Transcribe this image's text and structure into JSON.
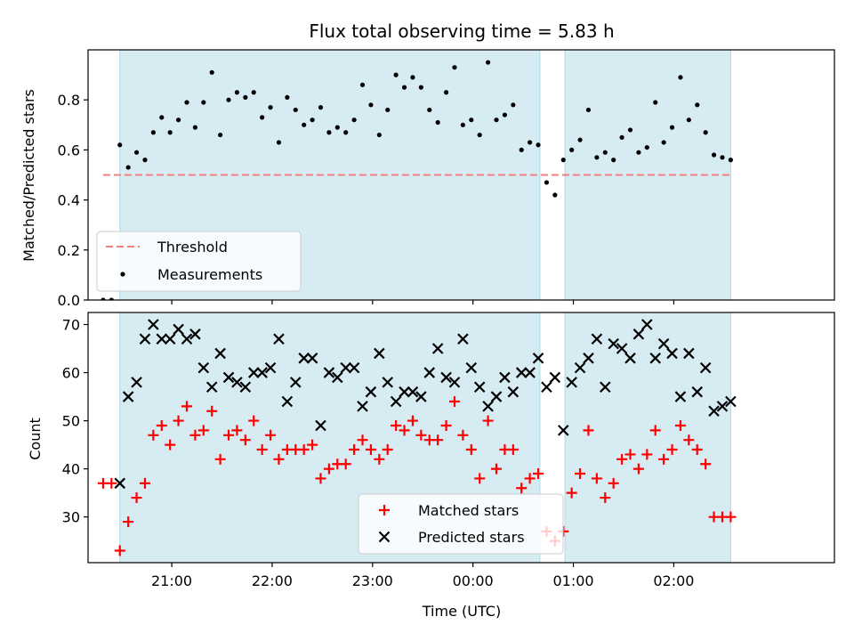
{
  "chart_data": [
    {
      "type": "scatter",
      "title": "Flux total observing time = 5.83 h",
      "ylabel": "Matched/Predicted stars",
      "xlabel": "",
      "xlim": [
        "20:10",
        "03:36"
      ],
      "ylim": [
        0,
        1.0
      ],
      "yticks": [
        "0.0",
        "0.2",
        "0.4",
        "0.6",
        "0.8"
      ],
      "grid": false,
      "legend_position": "lower-left",
      "shaded_intervals": [
        [
          "20:29",
          "00:40"
        ],
        [
          "00:55",
          "02:34"
        ]
      ],
      "threshold": {
        "name": "Threshold",
        "y": 0.5,
        "x_start": "20:19",
        "x_end": "02:34",
        "color": "#f08080"
      },
      "series": [
        {
          "name": "Measurements",
          "color": "#000000",
          "x": [
            "20:19",
            "20:24",
            "20:29",
            "20:34",
            "20:39",
            "20:44",
            "20:49",
            "20:54",
            "20:59",
            "21:04",
            "21:09",
            "21:14",
            "21:19",
            "21:24",
            "21:29",
            "21:34",
            "21:39",
            "21:44",
            "21:49",
            "21:54",
            "21:59",
            "22:04",
            "22:09",
            "22:14",
            "22:19",
            "22:24",
            "22:29",
            "22:34",
            "22:39",
            "22:44",
            "22:49",
            "22:54",
            "22:59",
            "23:04",
            "23:09",
            "23:14",
            "23:19",
            "23:24",
            "23:29",
            "23:34",
            "23:39",
            "23:44",
            "23:49",
            "23:54",
            "23:59",
            "00:04",
            "00:09",
            "00:14",
            "00:19",
            "00:24",
            "00:29",
            "00:34",
            "00:39",
            "00:44",
            "00:49",
            "00:54",
            "00:59",
            "01:04",
            "01:09",
            "01:14",
            "01:19",
            "01:24",
            "01:29",
            "01:34",
            "01:39",
            "01:44",
            "01:49",
            "01:54",
            "01:59",
            "02:04",
            "02:09",
            "02:14",
            "02:19",
            "02:24",
            "02:29",
            "02:34"
          ],
          "y": [
            0.0,
            0.0,
            0.62,
            0.53,
            0.59,
            0.56,
            0.67,
            0.73,
            0.67,
            0.72,
            0.79,
            0.69,
            0.79,
            0.91,
            0.66,
            0.8,
            0.83,
            0.81,
            0.83,
            0.73,
            0.77,
            0.63,
            0.81,
            0.76,
            0.7,
            0.72,
            0.77,
            0.67,
            0.69,
            0.67,
            0.72,
            0.86,
            0.78,
            0.66,
            0.76,
            0.9,
            0.85,
            0.89,
            0.85,
            0.76,
            0.71,
            0.83,
            0.93,
            0.7,
            0.72,
            0.66,
            0.95,
            0.72,
            0.74,
            0.78,
            0.6,
            0.63,
            0.62,
            0.47,
            0.42,
            0.56,
            0.6,
            0.64,
            0.76,
            0.57,
            0.59,
            0.56,
            0.65,
            0.68,
            0.59,
            0.61,
            0.79,
            0.63,
            0.69,
            0.89,
            0.72,
            0.78,
            0.67,
            0.58,
            0.57,
            0.56
          ]
        }
      ]
    },
    {
      "type": "scatter",
      "title": "",
      "xlabel": "Time (UTC)",
      "ylabel": "Count",
      "xlim": [
        "20:10",
        "03:36"
      ],
      "ylim": [
        20.5,
        72.5
      ],
      "yticks": [
        30,
        40,
        50,
        60,
        70
      ],
      "xticks": [
        "21:00",
        "22:00",
        "23:00",
        "00:00",
        "01:00",
        "02:00"
      ],
      "grid": false,
      "legend_position": "lower-center",
      "shaded_intervals": [
        [
          "20:29",
          "00:40"
        ],
        [
          "00:55",
          "02:34"
        ]
      ],
      "series": [
        {
          "name": "Matched stars",
          "color": "#ff0000",
          "marker": "+",
          "x": [
            "20:19",
            "20:24",
            "20:29",
            "20:34",
            "20:39",
            "20:44",
            "20:49",
            "20:54",
            "20:59",
            "21:04",
            "21:09",
            "21:14",
            "21:19",
            "21:24",
            "21:29",
            "21:34",
            "21:39",
            "21:44",
            "21:49",
            "21:54",
            "21:59",
            "22:04",
            "22:09",
            "22:14",
            "22:19",
            "22:24",
            "22:29",
            "22:34",
            "22:39",
            "22:44",
            "22:49",
            "22:54",
            "22:59",
            "23:04",
            "23:09",
            "23:14",
            "23:19",
            "23:24",
            "23:29",
            "23:34",
            "23:39",
            "23:44",
            "23:49",
            "23:54",
            "23:59",
            "00:04",
            "00:09",
            "00:14",
            "00:19",
            "00:24",
            "00:29",
            "00:34",
            "00:39",
            "00:44",
            "00:49",
            "00:54",
            "00:59",
            "01:04",
            "01:09",
            "01:14",
            "01:19",
            "01:24",
            "01:29",
            "01:34",
            "01:39",
            "01:44",
            "01:49",
            "01:54",
            "01:59",
            "02:04",
            "02:09",
            "02:14",
            "02:19",
            "02:24",
            "02:29",
            "02:34"
          ],
          "y": [
            37,
            37,
            23,
            29,
            34,
            37,
            47,
            49,
            45,
            50,
            53,
            47,
            48,
            52,
            42,
            47,
            48,
            46,
            50,
            44,
            47,
            42,
            44,
            44,
            44,
            45,
            38,
            40,
            41,
            41,
            44,
            46,
            44,
            42,
            44,
            49,
            48,
            50,
            47,
            46,
            46,
            49,
            54,
            47,
            44,
            38,
            50,
            40,
            44,
            44,
            36,
            38,
            39,
            27,
            25,
            27,
            35,
            39,
            48,
            38,
            34,
            37,
            42,
            43,
            40,
            43,
            48,
            42,
            44,
            49,
            46,
            44,
            41,
            30,
            30,
            30
          ]
        },
        {
          "name": "Predicted stars",
          "color": "#000000",
          "marker": "x",
          "x": [
            "20:29",
            "20:34",
            "20:39",
            "20:44",
            "20:49",
            "20:54",
            "20:59",
            "21:04",
            "21:09",
            "21:14",
            "21:19",
            "21:24",
            "21:29",
            "21:34",
            "21:39",
            "21:44",
            "21:49",
            "21:54",
            "21:59",
            "22:04",
            "22:09",
            "22:14",
            "22:19",
            "22:24",
            "22:29",
            "22:34",
            "22:39",
            "22:44",
            "22:49",
            "22:54",
            "22:59",
            "23:04",
            "23:09",
            "23:14",
            "23:19",
            "23:24",
            "23:29",
            "23:34",
            "23:39",
            "23:44",
            "23:49",
            "23:54",
            "23:59",
            "00:04",
            "00:09",
            "00:14",
            "00:19",
            "00:24",
            "00:29",
            "00:34",
            "00:39",
            "00:44",
            "00:49",
            "00:54",
            "00:59",
            "01:04",
            "01:09",
            "01:14",
            "01:19",
            "01:24",
            "01:29",
            "01:34",
            "01:39",
            "01:44",
            "01:49",
            "01:54",
            "01:59",
            "02:04",
            "02:09",
            "02:14",
            "02:19",
            "02:24",
            "02:29",
            "02:34"
          ],
          "y": [
            37,
            55,
            58,
            67,
            70,
            67,
            67,
            69,
            67,
            68,
            61,
            57,
            64,
            59,
            58,
            57,
            60,
            60,
            61,
            67,
            54,
            58,
            63,
            63,
            49,
            60,
            59,
            61,
            61,
            53,
            56,
            64,
            58,
            54,
            56,
            56,
            55,
            60,
            65,
            59,
            58,
            67,
            61,
            57,
            53,
            55,
            59,
            56,
            60,
            60,
            63,
            57,
            59,
            48,
            58,
            61,
            63,
            67,
            57,
            66,
            65,
            63,
            68,
            70,
            63,
            66,
            64,
            55,
            64,
            56,
            61,
            52,
            53,
            54
          ]
        }
      ]
    }
  ]
}
